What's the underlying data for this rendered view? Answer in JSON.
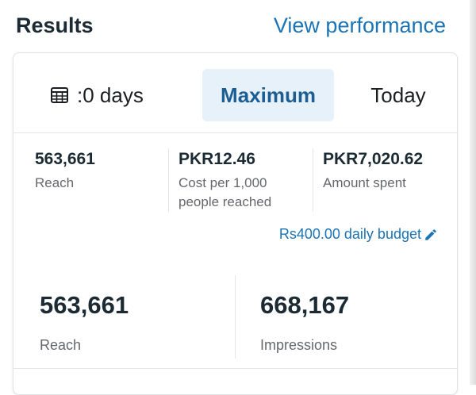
{
  "header": {
    "title": "Results",
    "link": "View performance"
  },
  "tabs": [
    {
      "label": "​:0 days"
    },
    {
      "label": "Maximum",
      "selected": true
    },
    {
      "label": "Today"
    }
  ],
  "summary": [
    {
      "value": "563,661",
      "label": "Reach"
    },
    {
      "value": "PKR12.46",
      "label": "Cost per 1,000 people reached"
    },
    {
      "value": "PKR7,020.62",
      "label": "Amount spent"
    }
  ],
  "budget": {
    "label": "Rs400.00 daily budget"
  },
  "metrics": [
    {
      "value": "563,661",
      "label": "Reach"
    },
    {
      "value": "668,167",
      "label": "Impressions"
    }
  ],
  "icons": {
    "calendar": "calendar-icon",
    "edit": "pencil-icon"
  },
  "colors": {
    "accent": "#1b74b4",
    "selected_bg": "#e7f1fa"
  }
}
